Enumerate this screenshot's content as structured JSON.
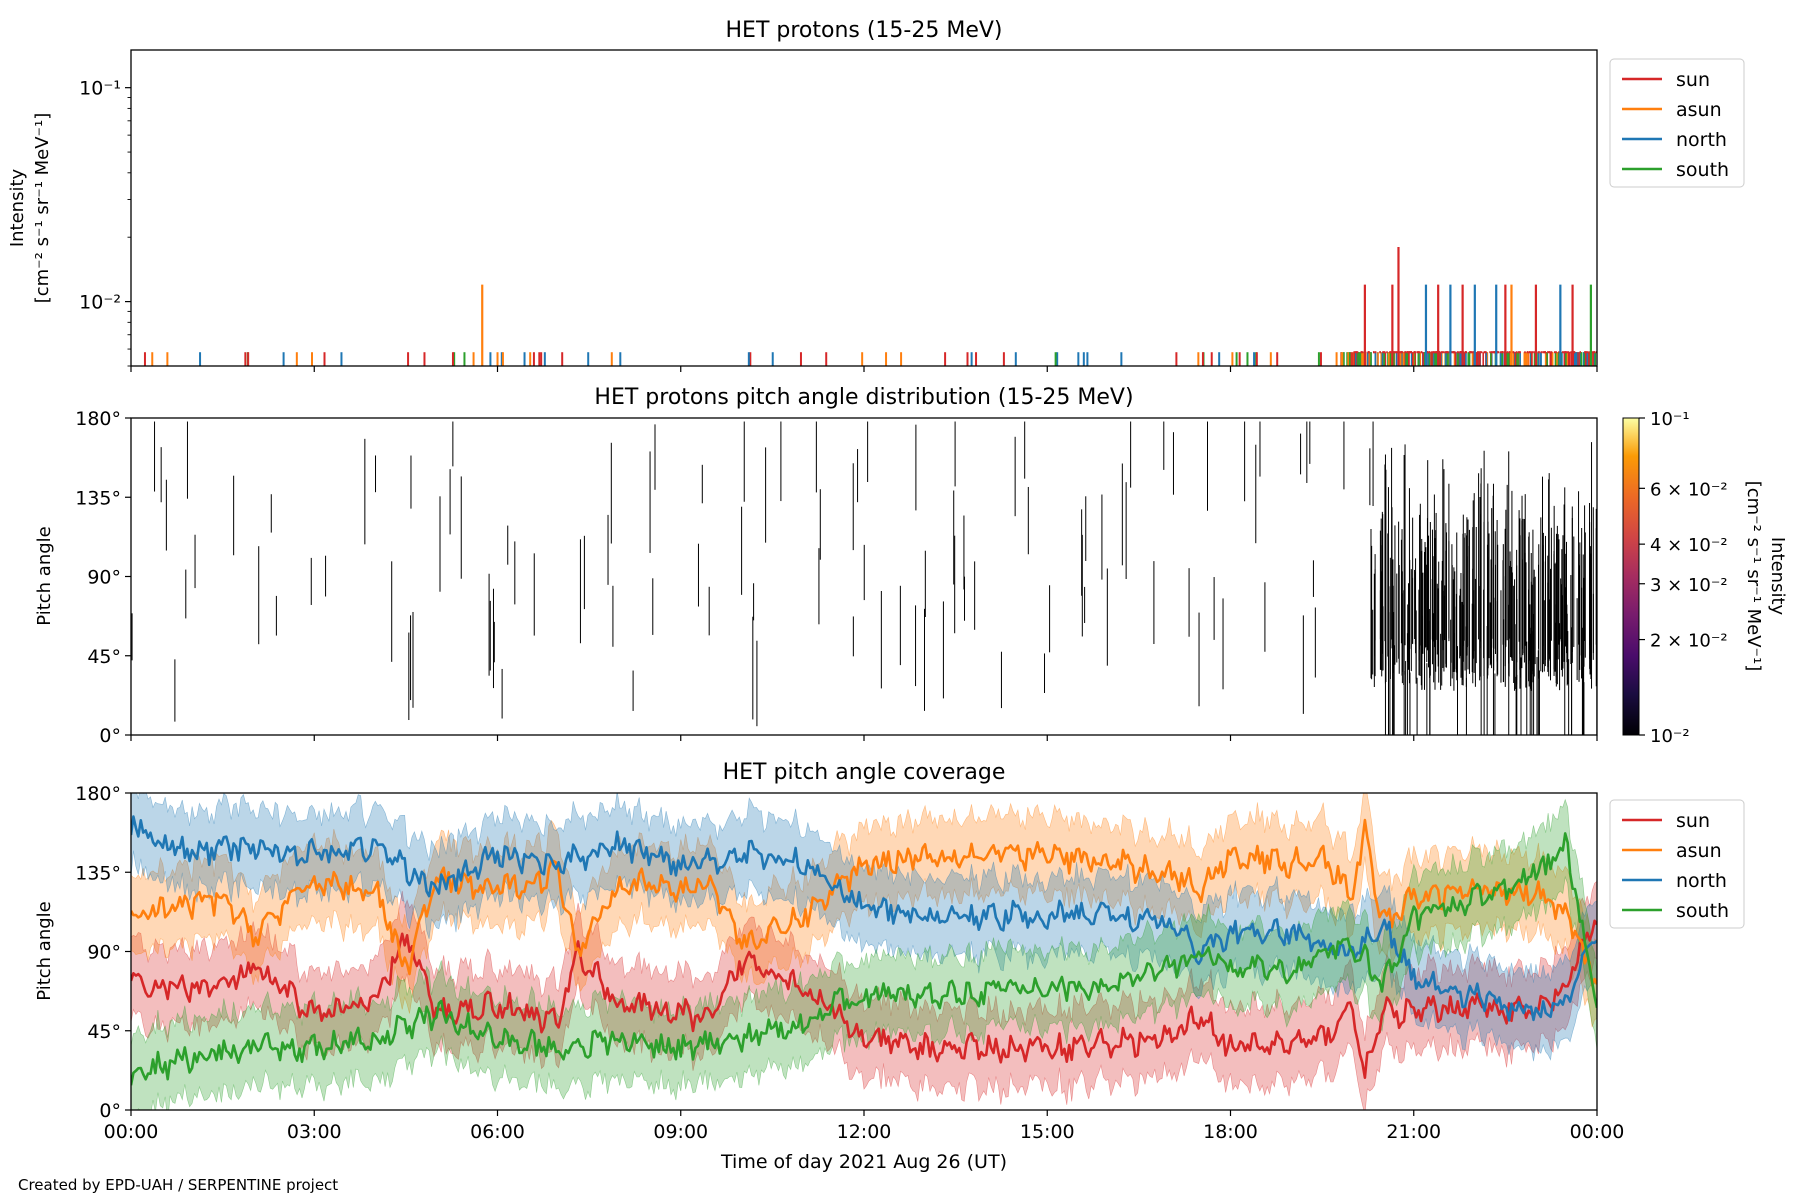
{
  "footer": {
    "credit": "Created by EPD-UAH / SERPENTINE project"
  },
  "colors": {
    "sun": "#d62728",
    "asun": "#ff7f0e",
    "north": "#1f77b4",
    "south": "#2ca02c"
  },
  "chart_data": [
    {
      "type": "line",
      "title": "HET protons (15-25 MeV)",
      "ylabel_lines": [
        "Intensity",
        "[cm⁻² s⁻¹ sr⁻¹ MeV⁻¹]"
      ],
      "yscale": "log",
      "ylim": [
        0.005,
        0.15
      ],
      "yticks": [
        {
          "value": 0.1,
          "label": "10⁻¹"
        },
        {
          "value": 0.01,
          "label": "10⁻²"
        }
      ],
      "xlim": [
        0,
        24
      ],
      "legend": {
        "placement": "outside-right-top",
        "entries": [
          "sun",
          "asun",
          "north",
          "south"
        ]
      },
      "baseline_value": 0.0058,
      "spikes": [
        {
          "series": "asun",
          "t": 5.75,
          "value": 0.012
        },
        {
          "series": "sun",
          "t": 20.75,
          "value": 0.018
        },
        {
          "series": "sun",
          "t": 20.2,
          "value": 0.012
        },
        {
          "series": "sun",
          "t": 20.65,
          "value": 0.012
        },
        {
          "series": "north",
          "t": 21.2,
          "value": 0.012
        },
        {
          "series": "sun",
          "t": 21.4,
          "value": 0.012
        },
        {
          "series": "north",
          "t": 21.6,
          "value": 0.012
        },
        {
          "series": "sun",
          "t": 21.8,
          "value": 0.012
        },
        {
          "series": "north",
          "t": 22.0,
          "value": 0.012
        },
        {
          "series": "north",
          "t": 22.35,
          "value": 0.012
        },
        {
          "series": "sun",
          "t": 22.5,
          "value": 0.012
        },
        {
          "series": "asun",
          "t": 22.6,
          "value": 0.012
        },
        {
          "series": "sun",
          "t": 23.0,
          "value": 0.012
        },
        {
          "series": "north",
          "t": 23.4,
          "value": 0.012
        },
        {
          "series": "sun",
          "t": 23.6,
          "value": 0.012
        },
        {
          "series": "south",
          "t": 23.9,
          "value": 0.012
        }
      ]
    },
    {
      "type": "heatmap",
      "title": "HET protons pitch angle distribution (15-25 MeV)",
      "ylabel": "Pitch angle",
      "ylim": [
        0,
        180
      ],
      "yticks": [
        "0°",
        "45°",
        "90°",
        "135°",
        "180°"
      ],
      "xlim": [
        0,
        24
      ],
      "colorbar": {
        "label_lines": [
          "Intensity",
          "[cm⁻² s⁻¹ sr⁻¹ MeV⁻¹]"
        ],
        "scale": "log",
        "range": [
          0.01,
          0.1
        ],
        "ticks": [
          {
            "value": 0.1,
            "label": "10⁻¹"
          },
          {
            "value": 0.06,
            "label": "6 × 10⁻²"
          },
          {
            "value": 0.04,
            "label": "4 × 10⁻²"
          },
          {
            "value": 0.03,
            "label": "3 × 10⁻²"
          },
          {
            "value": 0.02,
            "label": "2 × 10⁻²"
          },
          {
            "value": 0.01,
            "label": "10⁻²"
          }
        ]
      }
    },
    {
      "type": "line",
      "title": "HET pitch angle coverage",
      "ylabel": "Pitch angle",
      "ylim": [
        0,
        180
      ],
      "yticks": [
        "0°",
        "45°",
        "90°",
        "135°",
        "180°"
      ],
      "xlabel": "Time of day 2021 Aug 26 (UT)",
      "xlim": [
        0,
        24
      ],
      "xticks": [
        "00:00",
        "03:00",
        "06:00",
        "09:00",
        "12:00",
        "15:00",
        "18:00",
        "21:00",
        "00:00"
      ],
      "legend": {
        "placement": "outside-right-top",
        "entries": [
          "sun",
          "asun",
          "north",
          "south"
        ]
      },
      "band_halfwidth_deg": 22,
      "series": [
        {
          "name": "sun",
          "knots": [
            [
              0,
              70
            ],
            [
              1.5,
              70
            ],
            [
              2,
              80
            ],
            [
              3,
              55
            ],
            [
              4,
              60
            ],
            [
              4.5,
              100
            ],
            [
              5,
              55
            ],
            [
              6,
              60
            ],
            [
              7,
              50
            ],
            [
              7.3,
              90
            ],
            [
              8,
              60
            ],
            [
              9,
              55
            ],
            [
              9.5,
              50
            ],
            [
              10,
              85
            ],
            [
              10.5,
              80
            ],
            [
              11,
              70
            ],
            [
              11.5,
              55
            ],
            [
              12,
              40
            ],
            [
              13,
              35
            ],
            [
              15,
              35
            ],
            [
              16,
              38
            ],
            [
              17,
              40
            ],
            [
              17.5,
              55
            ],
            [
              18,
              35
            ],
            [
              19,
              38
            ],
            [
              19.5,
              40
            ],
            [
              20,
              60
            ],
            [
              20.2,
              20
            ],
            [
              20.5,
              55
            ],
            [
              21,
              55
            ],
            [
              22,
              60
            ],
            [
              23,
              55
            ],
            [
              23.5,
              70
            ],
            [
              24,
              110
            ]
          ]
        },
        {
          "name": "asun",
          "knots": [
            [
              0,
              110
            ],
            [
              1.5,
              120
            ],
            [
              2,
              100
            ],
            [
              3,
              130
            ],
            [
              4,
              125
            ],
            [
              4.5,
              80
            ],
            [
              5,
              130
            ],
            [
              6,
              125
            ],
            [
              7,
              135
            ],
            [
              7.3,
              90
            ],
            [
              8,
              130
            ],
            [
              9,
              125
            ],
            [
              9.5,
              130
            ],
            [
              10,
              95
            ],
            [
              10.5,
              100
            ],
            [
              11,
              110
            ],
            [
              11.5,
              125
            ],
            [
              12,
              140
            ],
            [
              13,
              145
            ],
            [
              15,
              145
            ],
            [
              16,
              140
            ],
            [
              17,
              135
            ],
            [
              17.5,
              125
            ],
            [
              18,
              145
            ],
            [
              19,
              140
            ],
            [
              19.5,
              145
            ],
            [
              20,
              120
            ],
            [
              20.2,
              160
            ],
            [
              20.5,
              105
            ],
            [
              21,
              120
            ],
            [
              22,
              125
            ],
            [
              23,
              125
            ],
            [
              23.5,
              110
            ],
            [
              24,
              70
            ]
          ]
        },
        {
          "name": "north",
          "knots": [
            [
              0,
              160
            ],
            [
              1,
              145
            ],
            [
              2,
              150
            ],
            [
              3,
              145
            ],
            [
              4,
              150
            ],
            [
              5,
              125
            ],
            [
              6,
              145
            ],
            [
              7,
              140
            ],
            [
              8,
              150
            ],
            [
              9,
              140
            ],
            [
              10,
              145
            ],
            [
              11,
              140
            ],
            [
              11.5,
              130
            ],
            [
              12,
              115
            ],
            [
              13,
              110
            ],
            [
              15,
              110
            ],
            [
              16,
              112
            ],
            [
              17,
              105
            ],
            [
              17.5,
              90
            ],
            [
              18,
              100
            ],
            [
              19,
              100
            ],
            [
              20,
              90
            ],
            [
              20.5,
              105
            ],
            [
              21,
              75
            ],
            [
              22,
              65
            ],
            [
              23,
              55
            ],
            [
              23.5,
              60
            ],
            [
              24,
              100
            ]
          ]
        },
        {
          "name": "south",
          "knots": [
            [
              0,
              20
            ],
            [
              1,
              30
            ],
            [
              2,
              35
            ],
            [
              3,
              35
            ],
            [
              4,
              40
            ],
            [
              5,
              55
            ],
            [
              6,
              40
            ],
            [
              7,
              35
            ],
            [
              8,
              40
            ],
            [
              9,
              35
            ],
            [
              10,
              40
            ],
            [
              11,
              50
            ],
            [
              11.5,
              60
            ],
            [
              12,
              65
            ],
            [
              13,
              65
            ],
            [
              15,
              70
            ],
            [
              16,
              70
            ],
            [
              17,
              80
            ],
            [
              17.5,
              90
            ],
            [
              18,
              80
            ],
            [
              19,
              80
            ],
            [
              20,
              95
            ],
            [
              20.5,
              70
            ],
            [
              21,
              110
            ],
            [
              22,
              120
            ],
            [
              23,
              135
            ],
            [
              23.5,
              150
            ],
            [
              24,
              60
            ]
          ]
        }
      ]
    }
  ]
}
